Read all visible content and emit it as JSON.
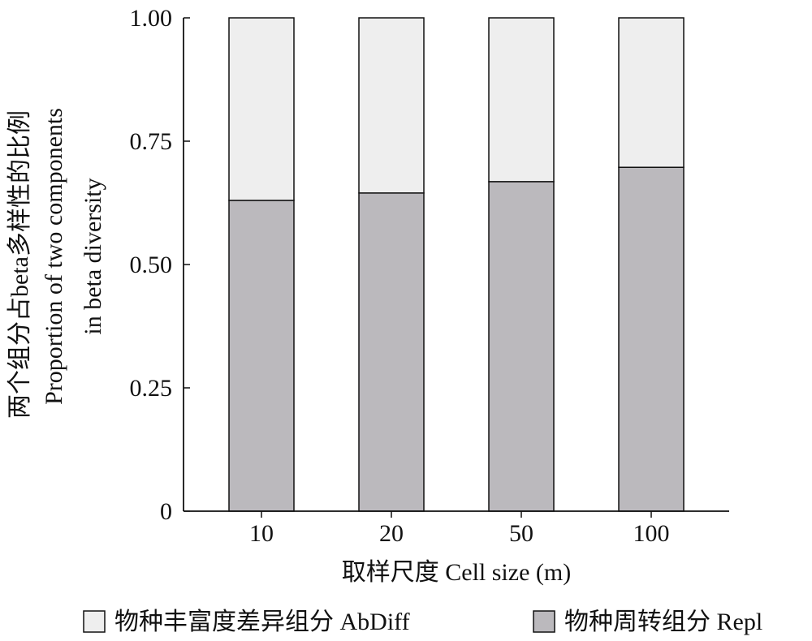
{
  "chart_data": {
    "type": "bar",
    "stacked": true,
    "categories": [
      "10",
      "20",
      "50",
      "100"
    ],
    "series": [
      {
        "name": "物种周转组分 Repl",
        "values": [
          0.63,
          0.645,
          0.668,
          0.697
        ],
        "color": "#bbb9bd"
      },
      {
        "name": "物种丰富度差异组分 AbDiff",
        "values": [
          0.37,
          0.355,
          0.332,
          0.303
        ],
        "color": "#eeeeee"
      }
    ],
    "xlabel": "取样尺度 Cell size (m)",
    "ylabel_line1": "两个组分占beta多样性的比例",
    "ylabel_line2": "Proportion of two components",
    "ylabel_line3": "in beta diversity",
    "ylim": [
      0,
      1
    ],
    "yticks": [
      "0",
      "0.25",
      "0.50",
      "0.75",
      "1.00"
    ],
    "ytick_values": [
      0,
      0.25,
      0.5,
      0.75,
      1
    ],
    "grid": false,
    "legend_position": "bottom"
  }
}
